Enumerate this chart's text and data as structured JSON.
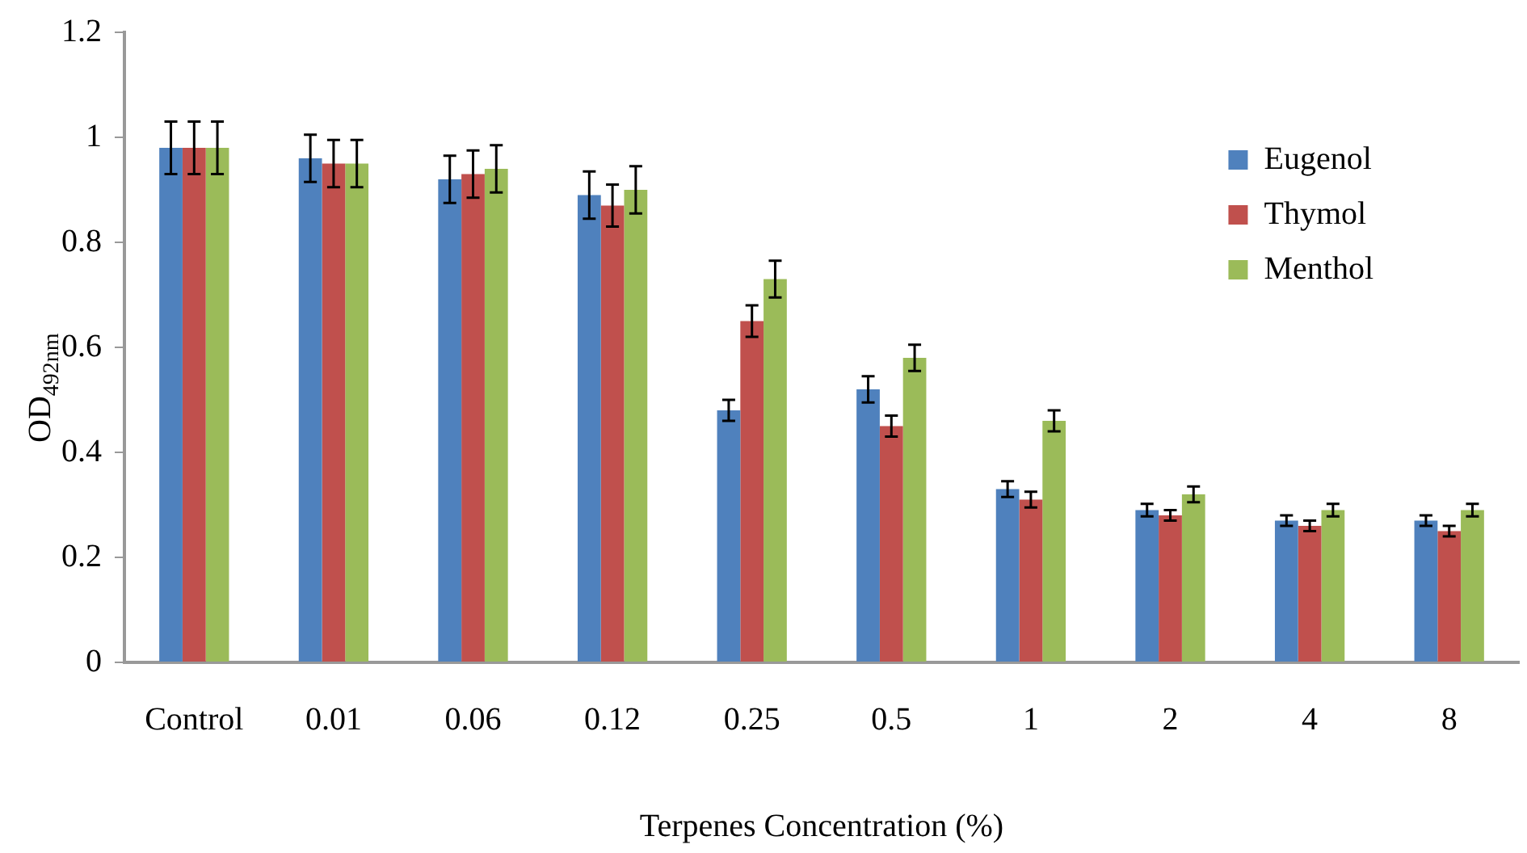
{
  "chart_data": {
    "type": "bar",
    "xlabel": "Terpenes Concentration (%)",
    "ylabel": "OD$_{492nm}$",
    "categories": [
      "Control",
      "0.01",
      "0.06",
      "0.12",
      "0.25",
      "0.5",
      "1",
      "2",
      "4",
      "8"
    ],
    "series": [
      {
        "name": "Eugenol",
        "color": "#4f81bd",
        "values": [
          0.98,
          0.96,
          0.92,
          0.89,
          0.48,
          0.52,
          0.33,
          0.29,
          0.27,
          0.27
        ],
        "errors": [
          0.05,
          0.045,
          0.045,
          0.045,
          0.02,
          0.025,
          0.015,
          0.012,
          0.01,
          0.01
        ]
      },
      {
        "name": "Thymol",
        "color": "#c0504d",
        "values": [
          0.98,
          0.95,
          0.93,
          0.87,
          0.65,
          0.45,
          0.31,
          0.28,
          0.26,
          0.25
        ],
        "errors": [
          0.05,
          0.045,
          0.045,
          0.04,
          0.03,
          0.02,
          0.015,
          0.01,
          0.01,
          0.01
        ]
      },
      {
        "name": "Menthol",
        "color": "#9bbb59",
        "values": [
          0.98,
          0.95,
          0.94,
          0.9,
          0.73,
          0.58,
          0.46,
          0.32,
          0.29,
          0.29
        ],
        "errors": [
          0.05,
          0.045,
          0.045,
          0.045,
          0.035,
          0.025,
          0.02,
          0.015,
          0.012,
          0.012
        ]
      }
    ],
    "ylim": [
      0,
      1.2
    ],
    "yticks": [
      0,
      0.2,
      0.4,
      0.6,
      0.8,
      1,
      1.2
    ],
    "grid": false,
    "legend": "top right"
  }
}
